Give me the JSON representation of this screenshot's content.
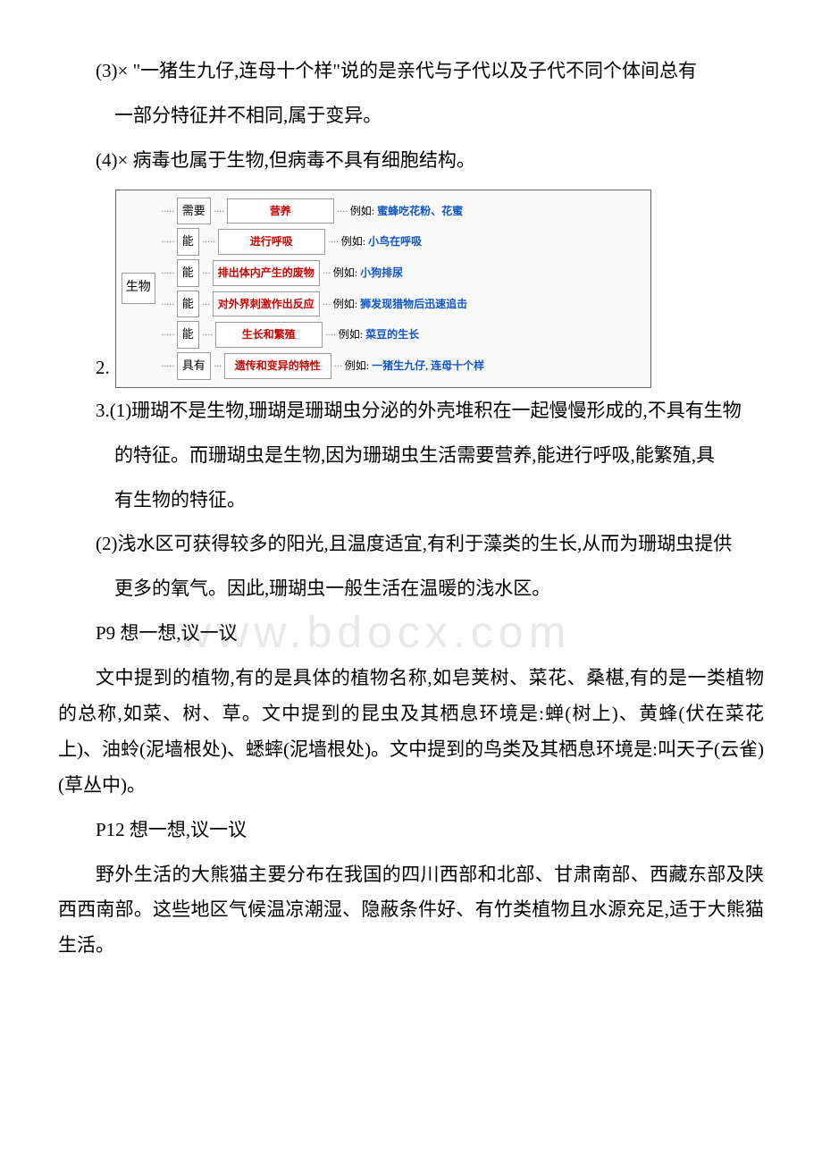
{
  "watermark": "www.bdocx.com",
  "para1": "(3)× \"一猪生九仔,连母十个样\"说的是亲代与子代以及子代不同个体间总有",
  "para1b": "一部分特征并不相同,属于变异。",
  "para2": "(4)×  病毒也属于生物,但病毒不具有细胞结构。",
  "num2": "2.",
  "diagram": {
    "root": "生物",
    "rows": [
      {
        "verb": "需要",
        "prop": "营养",
        "ex_label": "例如:",
        "ex": "蜜蜂吃花粉、花蜜"
      },
      {
        "verb": "能",
        "prop": "进行呼吸",
        "ex_label": "例如:",
        "ex": "小鸟在呼吸"
      },
      {
        "verb": "能",
        "prop": "排出体内产生的废物",
        "ex_label": "例如:",
        "ex": "小狗排尿"
      },
      {
        "verb": "能",
        "prop": "对外界刺激作出反应",
        "ex_label": "例如:",
        "ex": "狮发现猎物后迅速追击"
      },
      {
        "verb": "能",
        "prop": "生长和繁殖",
        "ex_label": "例如:",
        "ex": "菜豆的生长"
      },
      {
        "verb": "具有",
        "prop": "遗传和变异的特性",
        "ex_label": "例如:",
        "ex": "一猪生九仔, 连母十个样"
      }
    ]
  },
  "para3a": "3.(1)珊瑚不是生物,珊瑚是珊瑚虫分泌的外壳堆积在一起慢慢形成的,不具有生物",
  "para3b": "的特征。而珊瑚虫是生物,因为珊瑚虫生活需要营养,能进行呼吸,能繁殖,具",
  "para3c": "有生物的特征。",
  "para4a": "(2)浅水区可获得较多的阳光,且温度适宜,有利于藻类的生长,从而为珊瑚虫提供",
  "para4b": "更多的氧气。因此,珊瑚虫一般生活在温暖的浅水区。",
  "para5": "P9 想一想,议一议",
  "para6": "文中提到的植物,有的是具体的植物名称,如皂荚树、菜花、桑椹,有的是一类植物的总称,如菜、树、草。文中提到的昆虫及其栖息环境是:蝉(树上)、黄蜂(伏在菜花上)、油蛉(泥墙根处)、蟋蟀(泥墙根处)。文中提到的鸟类及其栖息环境是:叫天子(云雀)(草丛中)。",
  "para7": "P12 想一想,议一议",
  "para8": "野外生活的大熊猫主要分布在我国的四川西部和北部、甘肃南部、西藏东部及陕西西南部。这些地区气候温凉潮湿、隐蔽条件好、有竹类植物且水源充足,适于大熊猫生活。"
}
